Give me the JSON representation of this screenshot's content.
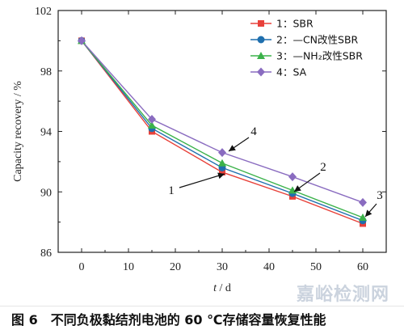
{
  "chart_data": {
    "type": "line",
    "xlabel_var": "t",
    "xlabel_unit": " / d",
    "ylabel": "Capacity recovery / %",
    "xlim": [
      -5,
      65
    ],
    "ylim": [
      86,
      102
    ],
    "xticks": [
      0,
      10,
      20,
      30,
      40,
      50,
      60
    ],
    "yticks": [
      86,
      90,
      94,
      98,
      102
    ],
    "x": [
      0,
      15,
      30,
      45,
      60
    ],
    "legend_placement": "top-right",
    "series": [
      {
        "name": "1：SBR",
        "color": "#e8413a",
        "marker": "square",
        "values": [
          100,
          94.0,
          91.3,
          89.7,
          87.9
        ]
      },
      {
        "name": "2：—CN改性SBR",
        "color": "#1f6fae",
        "marker": "circle",
        "values": [
          100,
          94.2,
          91.6,
          89.9,
          88.1
        ]
      },
      {
        "name": "3：—NH₂改性SBR",
        "color": "#3bb24a",
        "marker": "triangle",
        "values": [
          100,
          94.4,
          91.9,
          90.1,
          88.3
        ]
      },
      {
        "name": "4：SA",
        "color": "#8a6cc0",
        "marker": "diamond",
        "values": [
          100,
          94.8,
          92.6,
          91.0,
          89.3
        ]
      }
    ],
    "annotations": [
      {
        "label": "1",
        "series": 0,
        "point": 2
      },
      {
        "label": "2",
        "series": 1,
        "point": 3
      },
      {
        "label": "3",
        "series": 2,
        "point": 4
      },
      {
        "label": "4",
        "series": 3,
        "point": 2
      }
    ]
  },
  "caption": {
    "figure_no": "图 6",
    "text": "不同负极黏结剂电池的 60 ℃存储容量恢复性能"
  },
  "watermark": "嘉峪检测网"
}
